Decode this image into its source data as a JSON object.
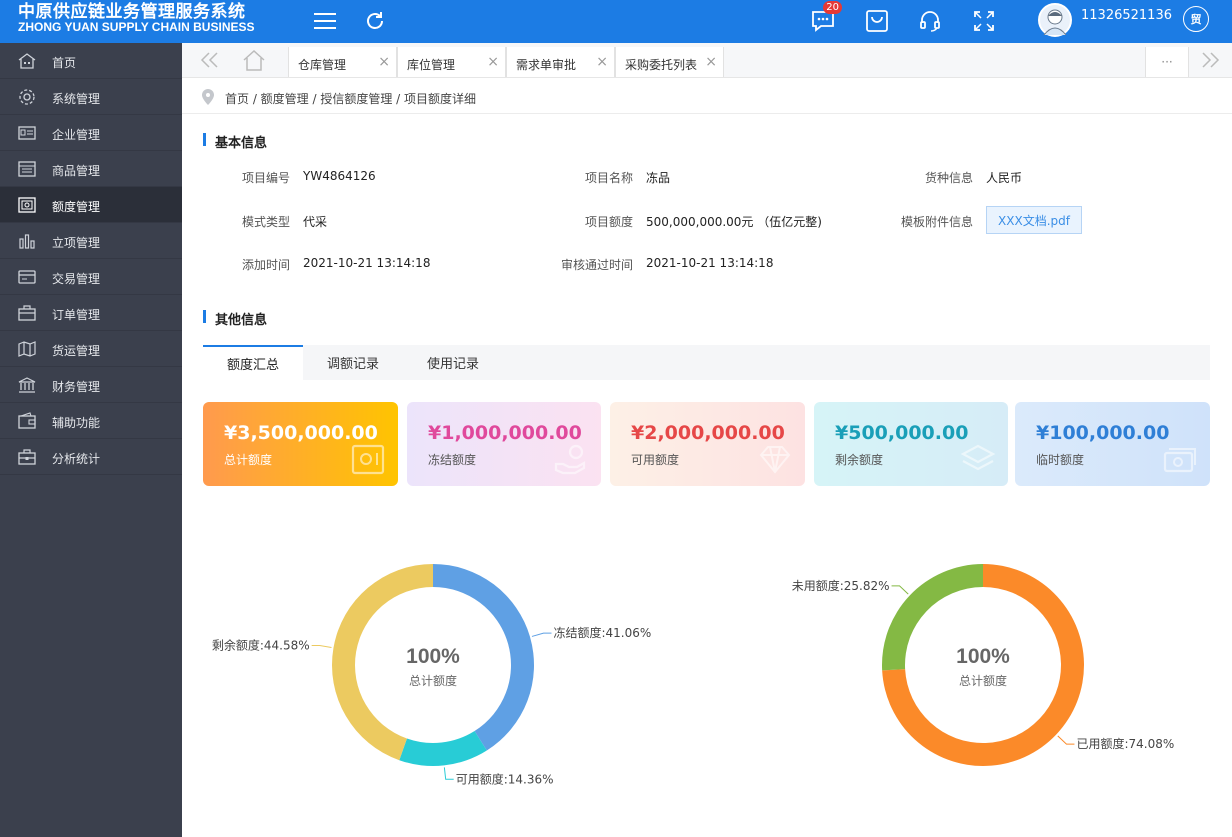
{
  "header": {
    "brand_cn": "中原供应链业务管理服务系统",
    "brand_en": "ZHONG YUAN SUPPLY CHAIN BUSINESS",
    "message_badge": "20",
    "username": "11326521136",
    "user_button": "贸"
  },
  "sidebar": {
    "items": [
      {
        "label": "首页",
        "icon": "home-icon"
      },
      {
        "label": "系统管理",
        "icon": "gear-icon"
      },
      {
        "label": "企业管理",
        "icon": "id-card-icon"
      },
      {
        "label": "商品管理",
        "icon": "product-list-icon"
      },
      {
        "label": "额度管理",
        "icon": "safe-icon",
        "active": true
      },
      {
        "label": "立项管理",
        "icon": "bar-chart-icon"
      },
      {
        "label": "交易管理",
        "icon": "card-icon"
      },
      {
        "label": "订单管理",
        "icon": "briefcase-icon"
      },
      {
        "label": "货运管理",
        "icon": "map-icon"
      },
      {
        "label": "财务管理",
        "icon": "bank-icon"
      },
      {
        "label": "辅助功能",
        "icon": "wallet-icon"
      },
      {
        "label": "分析统计",
        "icon": "stats-icon"
      }
    ]
  },
  "tabs": {
    "items": [
      {
        "label": "仓库管理"
      },
      {
        "label": "库位管理"
      },
      {
        "label": "需求单审批"
      },
      {
        "label": "采购委托列表"
      }
    ],
    "more_label": "···"
  },
  "breadcrumb": {
    "text": "首页 / 额度管理 / 授信额度管理 / 项目额度详细"
  },
  "basic_info": {
    "title": "基本信息",
    "project_no_label": "项目编号",
    "project_no": "YW4864126",
    "project_name_label": "项目名称",
    "project_name": "冻品",
    "currency_label": "货种信息",
    "currency": "人民币",
    "mode_label": "模式类型",
    "mode": "代采",
    "quota_label": "项目额度",
    "quota": "500,000,000.00元 （伍亿元整)",
    "attachment_label": "模板附件信息",
    "attachment": "XXX文档.pdf",
    "added_label": "添加时间",
    "added": "2021-10-21 13:14:18",
    "approved_label": "审核通过时间",
    "approved": "2021-10-21 13:14:18"
  },
  "other_info": {
    "title": "其他信息",
    "tabs": [
      "额度汇总",
      "调额记录",
      "使用记录"
    ],
    "active_tab": 0
  },
  "cards": [
    {
      "value": "¥3,500,000.00",
      "label": "总计额度",
      "icon": "safe-icon",
      "value_color": "#ffffff",
      "label_color": "#ffffff",
      "bg_from": "#ff9a4e",
      "bg_to": "#ffc400"
    },
    {
      "value": "¥1,000,000.00",
      "label": "冻结额度",
      "icon": "hand-coin-icon",
      "value_color": "#e0499c",
      "label_color": "#555555",
      "bg_from": "#ece4fb",
      "bg_to": "#fbe2f1"
    },
    {
      "value": "¥2,000,000.00",
      "label": "可用额度",
      "icon": "diamond-icon",
      "value_color": "#e64747",
      "label_color": "#555555",
      "bg_from": "#fdf0e6",
      "bg_to": "#fde2e2"
    },
    {
      "value": "¥500,000.00",
      "label": "剩余额度",
      "icon": "layers-icon",
      "value_color": "#1a9fb8",
      "label_color": "#555555",
      "bg_from": "#d6f4f7",
      "bg_to": "#d6ecf7"
    },
    {
      "value": "¥100,000.00",
      "label": "临时额度",
      "icon": "money-icon",
      "value_color": "#2f7fd6",
      "label_color": "#555555",
      "bg_from": "#dbeafb",
      "bg_to": "#cfe2fa"
    }
  ],
  "chart_data": [
    {
      "type": "pie",
      "center_value": "100%",
      "center_label": "总计额度",
      "series": [
        {
          "name": "冻结额度",
          "value": 41.06,
          "label": "冻结额度:41.06%",
          "color": "#5fa0e4"
        },
        {
          "name": "可用额度",
          "value": 14.36,
          "label": "可用额度:14.36%",
          "color": "#28ccd6"
        },
        {
          "name": "剩余额度",
          "value": 44.58,
          "label": "剩余额度:44.58%",
          "color": "#ecca60"
        }
      ]
    },
    {
      "type": "pie",
      "center_value": "100%",
      "center_label": "总计额度",
      "series": [
        {
          "name": "已用额度",
          "value": 74.08,
          "label": "已用额度:74.08%",
          "color": "#fb8a29"
        },
        {
          "name": "未用额度",
          "value": 25.82,
          "label": "未用额度:25.82%",
          "color": "#84b944"
        }
      ]
    }
  ]
}
